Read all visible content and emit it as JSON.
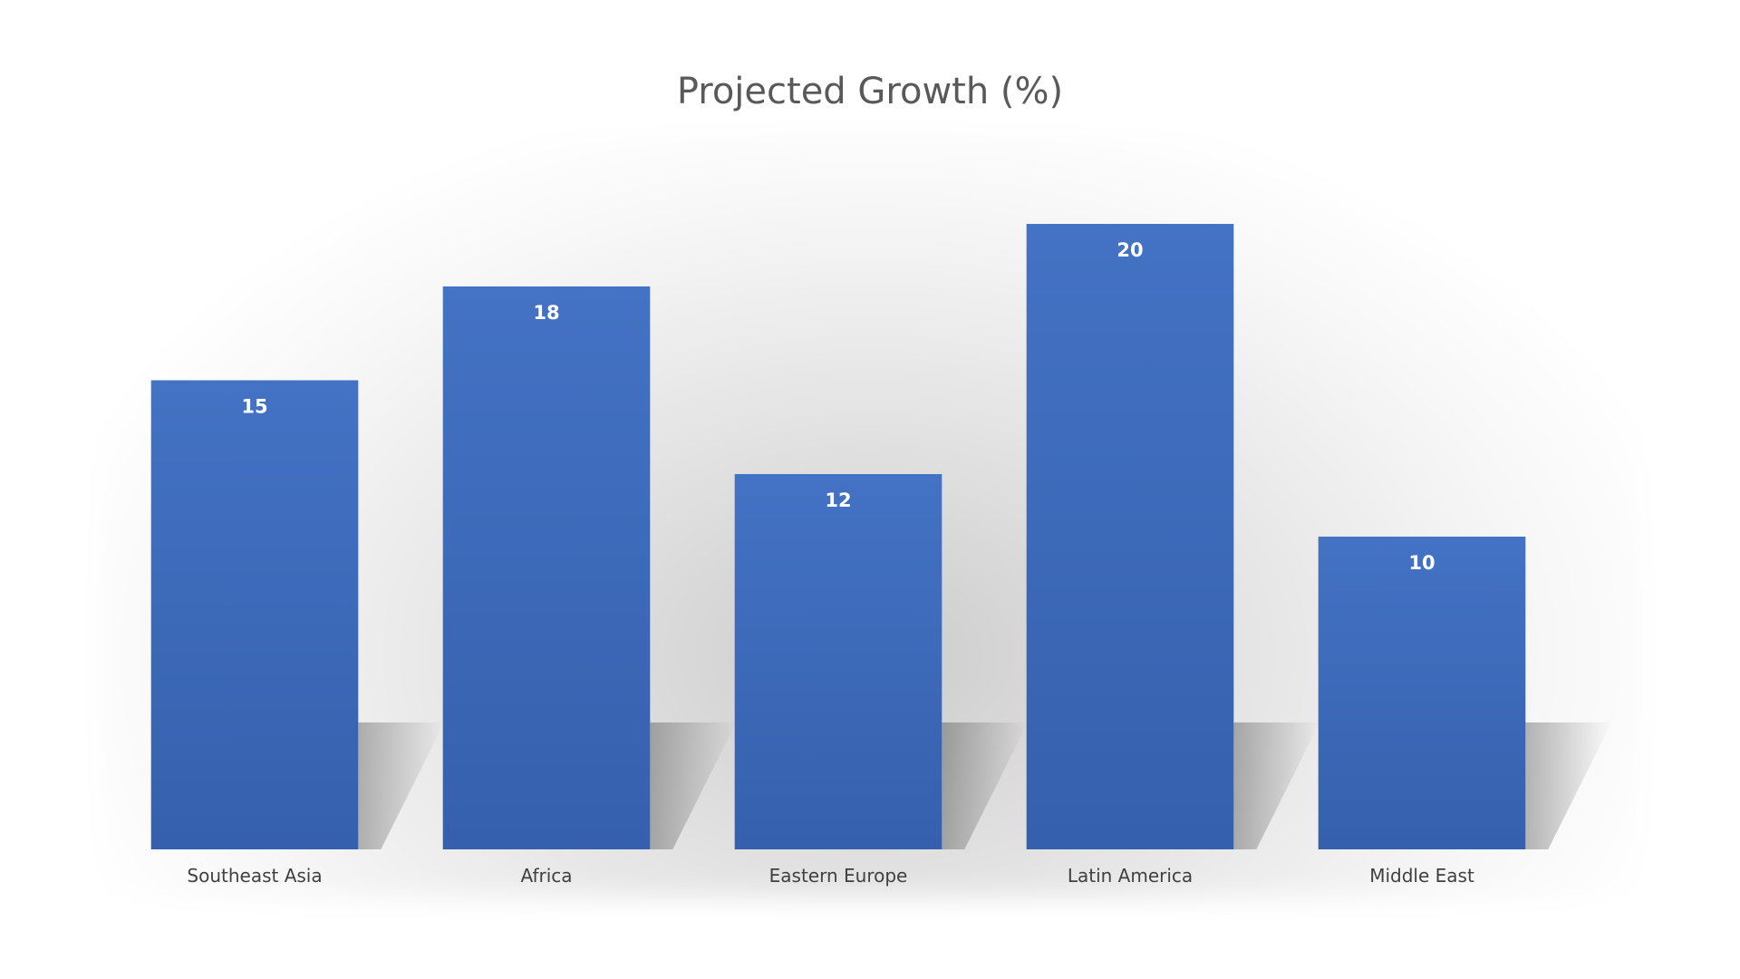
{
  "chart_data": {
    "type": "bar",
    "title": "Projected Growth (%)",
    "categories": [
      "Southeast Asia",
      "Africa",
      "Eastern Europe",
      "Latin America",
      "Middle East"
    ],
    "values": [
      15,
      18,
      12,
      20,
      10
    ],
    "data_labels": [
      "15",
      "18",
      "12",
      "20",
      "10"
    ],
    "xlabel": "",
    "ylabel": "",
    "ylim": [
      0,
      20
    ],
    "grid": false,
    "legend": "none",
    "bar_color_top": "#4472C4",
    "bar_color_bottom": "#3560AD"
  }
}
